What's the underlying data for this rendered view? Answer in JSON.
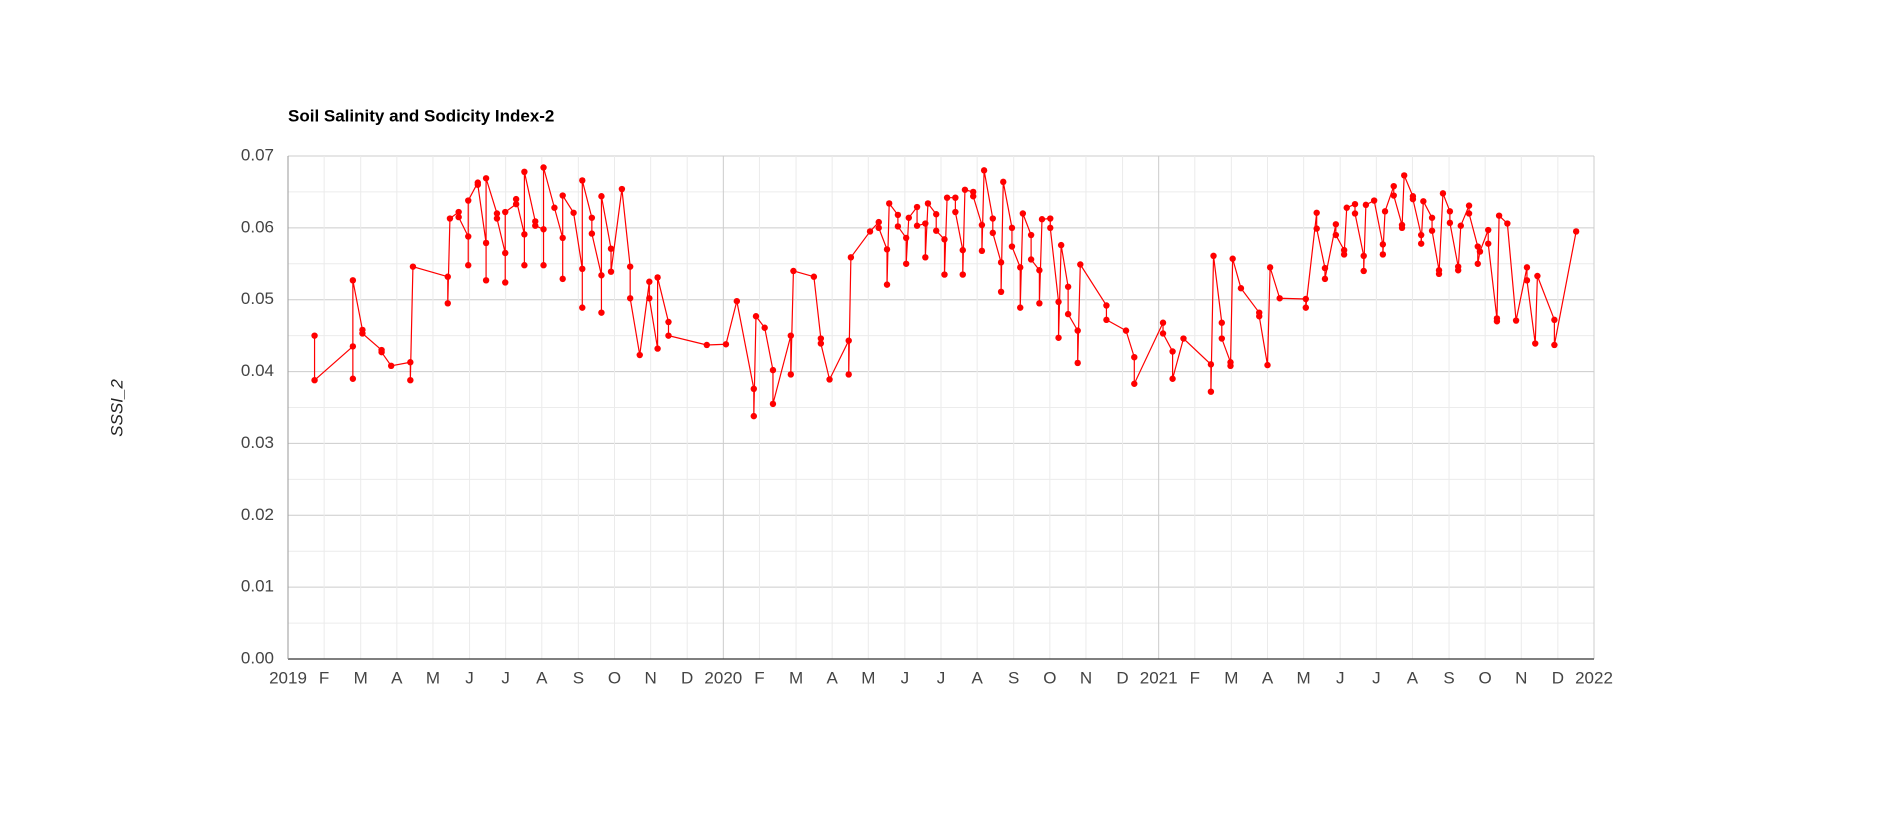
{
  "chart_data": {
    "type": "line",
    "title": "Soil Salinity and Sodicity Index-2",
    "ylabel": "SSSI_2",
    "color": "#ff0000",
    "grid": true,
    "xlim": [
      2019,
      2022
    ],
    "xticks": [
      2019,
      {
        "value": 2019.083,
        "label": "F"
      },
      {
        "value": 2019.167,
        "label": "M"
      },
      {
        "value": 2019.25,
        "label": "A"
      },
      {
        "value": 2019.333,
        "label": "M"
      },
      {
        "value": 2019.417,
        "label": "J"
      },
      {
        "value": 2019.5,
        "label": "J"
      },
      {
        "value": 2019.583,
        "label": "A"
      },
      {
        "value": 2019.667,
        "label": "S"
      },
      {
        "value": 2019.75,
        "label": "O"
      },
      {
        "value": 2019.833,
        "label": "N"
      },
      {
        "value": 2019.917,
        "label": "D"
      },
      2020,
      {
        "value": 2020.083,
        "label": "F"
      },
      {
        "value": 2020.167,
        "label": "M"
      },
      {
        "value": 2020.25,
        "label": "A"
      },
      {
        "value": 2020.333,
        "label": "M"
      },
      {
        "value": 2020.417,
        "label": "J"
      },
      {
        "value": 2020.5,
        "label": "J"
      },
      {
        "value": 2020.583,
        "label": "A"
      },
      {
        "value": 2020.667,
        "label": "S"
      },
      {
        "value": 2020.75,
        "label": "O"
      },
      {
        "value": 2020.833,
        "label": "N"
      },
      {
        "value": 2020.917,
        "label": "D"
      },
      2021,
      {
        "value": 2021.083,
        "label": "F"
      },
      {
        "value": 2021.167,
        "label": "M"
      },
      {
        "value": 2021.25,
        "label": "A"
      },
      {
        "value": 2021.333,
        "label": "M"
      },
      {
        "value": 2021.417,
        "label": "J"
      },
      {
        "value": 2021.5,
        "label": "J"
      },
      {
        "value": 2021.583,
        "label": "A"
      },
      {
        "value": 2021.667,
        "label": "S"
      },
      {
        "value": 2021.75,
        "label": "O"
      },
      {
        "value": 2021.833,
        "label": "N"
      },
      {
        "value": 2021.917,
        "label": "D"
      },
      2022
    ],
    "ylim": [
      0,
      0.07
    ],
    "yticks": [
      {
        "value": 0,
        "label": "0.00"
      },
      0.01,
      0.02,
      0.03,
      0.04,
      0.05,
      0.06,
      0.07
    ],
    "x": [
      2019.061,
      2019.061,
      2019.149,
      2019.149,
      2019.149,
      2019.171,
      2019.171,
      2019.215,
      2019.215,
      2019.237,
      2019.281,
      2019.281,
      2019.287,
      2019.367,
      2019.367,
      2019.372,
      2019.392,
      2019.392,
      2019.414,
      2019.414,
      2019.414,
      2019.436,
      2019.436,
      2019.455,
      2019.455,
      2019.455,
      2019.48,
      2019.48,
      2019.499,
      2019.499,
      2019.499,
      2019.524,
      2019.524,
      2019.543,
      2019.543,
      2019.543,
      2019.568,
      2019.568,
      2019.587,
      2019.587,
      2019.587,
      2019.612,
      2019.631,
      2019.631,
      2019.631,
      2019.656,
      2019.676,
      2019.676,
      2019.676,
      2019.698,
      2019.698,
      2019.72,
      2019.72,
      2019.72,
      2019.742,
      2019.742,
      2019.767,
      2019.786,
      2019.786,
      2019.808,
      2019.83,
      2019.83,
      2019.849,
      2019.849,
      2019.874,
      2019.874,
      2019.962,
      2020.006,
      2020.031,
      2020.07,
      2020.07,
      2020.075,
      2020.095,
      2020.114,
      2020.114,
      2020.155,
      2020.155,
      2020.161,
      2020.208,
      2020.224,
      2020.224,
      2020.244,
      2020.288,
      2020.288,
      2020.293,
      2020.337,
      2020.357,
      2020.357,
      2020.376,
      2020.376,
      2020.381,
      2020.401,
      2020.401,
      2020.42,
      2020.42,
      2020.426,
      2020.445,
      2020.445,
      2020.464,
      2020.464,
      2020.47,
      2020.489,
      2020.489,
      2020.508,
      2020.508,
      2020.514,
      2020.533,
      2020.533,
      2020.55,
      2020.55,
      2020.555,
      2020.574,
      2020.574,
      2020.594,
      2020.594,
      2020.599,
      2020.619,
      2020.619,
      2020.638,
      2020.638,
      2020.643,
      2020.663,
      2020.663,
      2020.682,
      2020.682,
      2020.688,
      2020.707,
      2020.707,
      2020.726,
      2020.726,
      2020.732,
      2020.751,
      2020.751,
      2020.77,
      2020.77,
      2020.776,
      2020.792,
      2020.792,
      2020.814,
      2020.814,
      2020.82,
      2020.88,
      2020.88,
      2020.925,
      2020.944,
      2020.944,
      2021.01,
      2021.01,
      2021.032,
      2021.032,
      2021.057,
      2021.12,
      2021.12,
      2021.126,
      2021.145,
      2021.145,
      2021.165,
      2021.165,
      2021.17,
      2021.189,
      2021.231,
      2021.231,
      2021.25,
      2021.256,
      2021.278,
      2021.338,
      2021.338,
      2021.363,
      2021.363,
      2021.382,
      2021.382,
      2021.407,
      2021.407,
      2021.426,
      2021.426,
      2021.432,
      2021.451,
      2021.451,
      2021.471,
      2021.471,
      2021.476,
      2021.495,
      2021.515,
      2021.515,
      2021.52,
      2021.54,
      2021.54,
      2021.559,
      2021.559,
      2021.564,
      2021.584,
      2021.584,
      2021.603,
      2021.603,
      2021.608,
      2021.628,
      2021.628,
      2021.644,
      2021.644,
      2021.653,
      2021.669,
      2021.669,
      2021.688,
      2021.688,
      2021.694,
      2021.713,
      2021.713,
      2021.733,
      2021.733,
      2021.738,
      2021.757,
      2021.757,
      2021.777,
      2021.777,
      2021.782,
      2021.801,
      2021.821,
      2021.846,
      2021.846,
      2021.865,
      2021.87,
      2021.909,
      2021.909,
      2021.959
    ],
    "values": [
      0.045,
      0.0388,
      0.0435,
      0.039,
      0.0527,
      0.0458,
      0.0453,
      0.043,
      0.0427,
      0.0408,
      0.0413,
      0.0388,
      0.0546,
      0.0532,
      0.0495,
      0.0613,
      0.0622,
      0.0615,
      0.0588,
      0.0548,
      0.0638,
      0.0663,
      0.066,
      0.0579,
      0.0527,
      0.0669,
      0.062,
      0.0613,
      0.0565,
      0.0524,
      0.0622,
      0.0633,
      0.064,
      0.0591,
      0.0548,
      0.0678,
      0.0609,
      0.0603,
      0.0598,
      0.0548,
      0.0684,
      0.0628,
      0.0586,
      0.0529,
      0.0645,
      0.0621,
      0.0543,
      0.0489,
      0.0666,
      0.0614,
      0.0592,
      0.0534,
      0.0482,
      0.0644,
      0.0571,
      0.0539,
      0.0654,
      0.0546,
      0.0502,
      0.0423,
      0.0525,
      0.0502,
      0.0432,
      0.0531,
      0.0469,
      0.045,
      0.0437,
      0.0438,
      0.0498,
      0.0376,
      0.0338,
      0.0477,
      0.0461,
      0.0402,
      0.0355,
      0.045,
      0.0396,
      0.054,
      0.0532,
      0.0446,
      0.0439,
      0.0389,
      0.0443,
      0.0396,
      0.0559,
      0.0595,
      0.0608,
      0.06,
      0.057,
      0.0521,
      0.0634,
      0.0618,
      0.0602,
      0.0586,
      0.055,
      0.0614,
      0.0629,
      0.0603,
      0.0606,
      0.0559,
      0.0634,
      0.0619,
      0.0596,
      0.0584,
      0.0535,
      0.0642,
      0.0642,
      0.0622,
      0.0569,
      0.0535,
      0.0653,
      0.065,
      0.0644,
      0.0604,
      0.0568,
      0.068,
      0.0613,
      0.0593,
      0.0552,
      0.0511,
      0.0664,
      0.06,
      0.0574,
      0.0545,
      0.0489,
      0.062,
      0.059,
      0.0556,
      0.0541,
      0.0495,
      0.0612,
      0.0613,
      0.06,
      0.0497,
      0.0447,
      0.0576,
      0.0518,
      0.048,
      0.0457,
      0.0412,
      0.0549,
      0.0492,
      0.0472,
      0.0457,
      0.042,
      0.0383,
      0.0468,
      0.0453,
      0.0428,
      0.039,
      0.0446,
      0.041,
      0.0372,
      0.0561,
      0.0468,
      0.0446,
      0.0413,
      0.0408,
      0.0557,
      0.0516,
      0.0482,
      0.0477,
      0.0409,
      0.0545,
      0.0502,
      0.0501,
      0.0489,
      0.0621,
      0.0599,
      0.0544,
      0.0529,
      0.0605,
      0.059,
      0.0569,
      0.0563,
      0.0628,
      0.0633,
      0.062,
      0.0561,
      0.054,
      0.0632,
      0.0638,
      0.0577,
      0.0563,
      0.0623,
      0.0658,
      0.0645,
      0.0604,
      0.06,
      0.0673,
      0.0644,
      0.064,
      0.059,
      0.0578,
      0.0637,
      0.0614,
      0.0596,
      0.0541,
      0.0536,
      0.0648,
      0.0623,
      0.0607,
      0.0546,
      0.0541,
      0.0603,
      0.0631,
      0.062,
      0.0574,
      0.055,
      0.0567,
      0.0597,
      0.0578,
      0.0474,
      0.047,
      0.0617,
      0.0606,
      0.0471,
      0.0545,
      0.0527,
      0.0439,
      0.0533,
      0.0472,
      0.0437,
      0.0595
    ]
  }
}
